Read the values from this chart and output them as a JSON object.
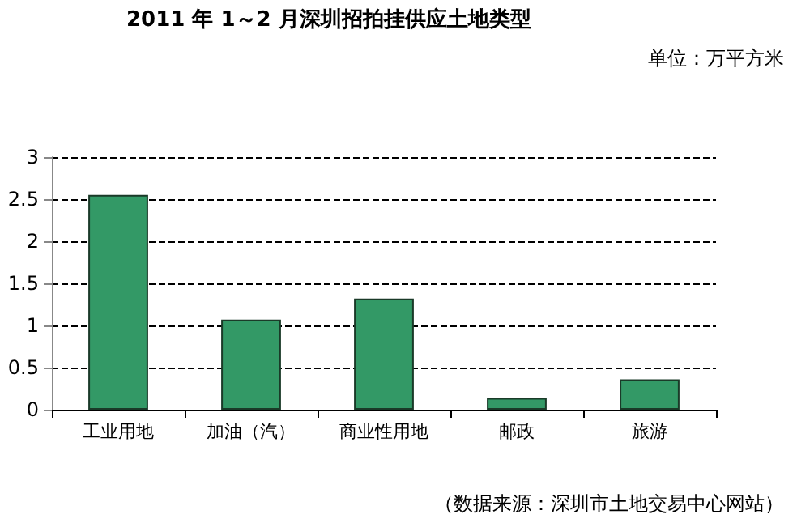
{
  "chart_data": {
    "type": "bar",
    "title": "2011 年 1～2 月深圳招拍挂供应土地类型",
    "subtitle": "单位：万平方米",
    "categories": [
      "工业用地",
      "加油（汽）",
      "商业性用地",
      "邮政",
      "旅游"
    ],
    "values": [
      2.55,
      1.07,
      1.32,
      0.14,
      0.36
    ],
    "color": "#339966",
    "ylim": [
      0,
      3
    ],
    "yticks": [
      0,
      0.5,
      1,
      1.5,
      2,
      2.5,
      3
    ],
    "grid": "y",
    "annotations": [
      "（数据来源：深圳市土地交易中心网站）"
    ]
  }
}
